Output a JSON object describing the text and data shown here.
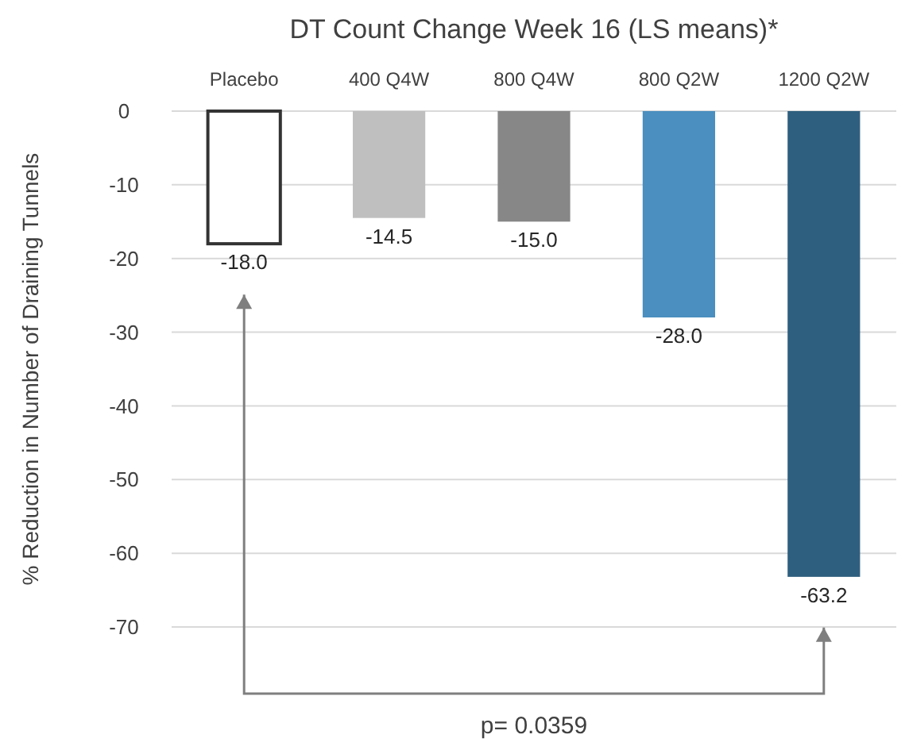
{
  "chart_data": {
    "type": "bar",
    "title": "DT Count Change Week 16 (LS means)*",
    "ylabel": "% Reduction in Number of Draining Tunnels",
    "categories": [
      "Placebo",
      "400 Q4W",
      "800 Q4W",
      "800 Q2W",
      "1200 Q2W"
    ],
    "values": [
      -18.0,
      -14.5,
      -15.0,
      -28.0,
      -63.2
    ],
    "colors": [
      "#ffffff",
      "#bfbfbf",
      "#878787",
      "#4a8fbf",
      "#2f5f7e"
    ],
    "value_labels": [
      "-18.0",
      "-14.5",
      "-15.0",
      "-28.0",
      "-63.2"
    ],
    "ylim": [
      -70,
      0
    ],
    "yticks": [
      0,
      -10,
      -20,
      -30,
      -40,
      -50,
      -60,
      -70
    ],
    "grid": "y",
    "annotations": [
      "p= 0.0359"
    ]
  }
}
